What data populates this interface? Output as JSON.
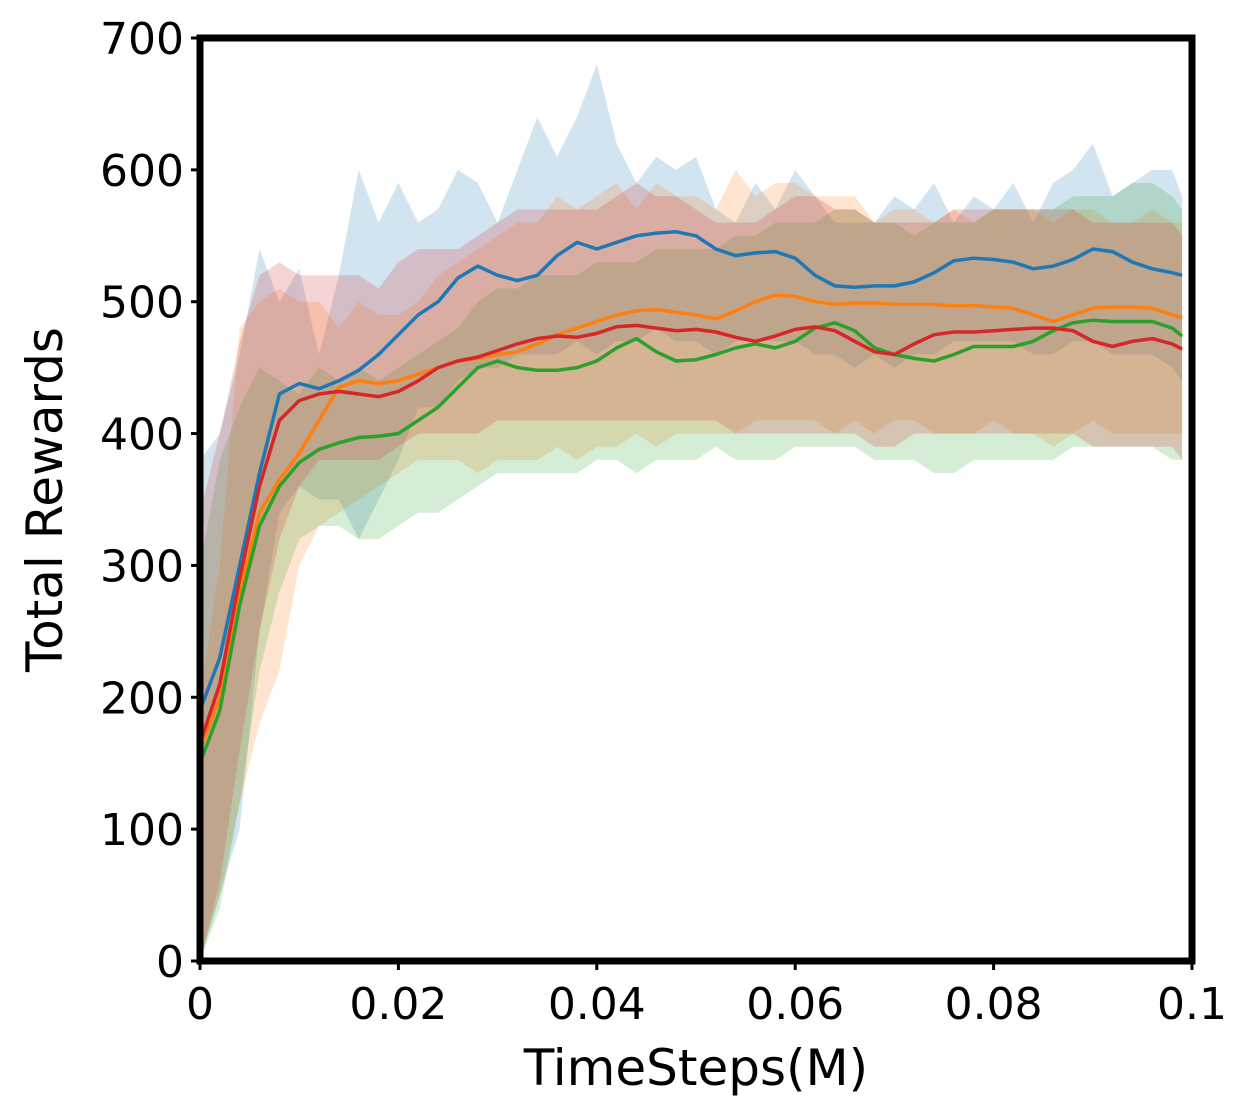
{
  "chart_data": {
    "type": "line",
    "title": "",
    "xlabel": "TimeSteps(M)",
    "ylabel": "Total Rewards",
    "xlim": [
      0,
      0.1
    ],
    "ylim": [
      0,
      700
    ],
    "xticks": [
      0,
      0.02,
      0.04,
      0.06,
      0.08,
      0.1
    ],
    "xtick_labels": [
      "0",
      "0.02",
      "0.04",
      "0.06",
      "0.08",
      "0.1"
    ],
    "yticks": [
      0,
      100,
      200,
      300,
      400,
      500,
      600,
      700
    ],
    "ytick_labels": [
      "0",
      "100",
      "200",
      "300",
      "400",
      "500",
      "600",
      "700"
    ],
    "grid": false,
    "legend": "none",
    "shaded_bands": true,
    "x": [
      0,
      0.002,
      0.004,
      0.006,
      0.008,
      0.01,
      0.012,
      0.014,
      0.016,
      0.018,
      0.02,
      0.022,
      0.024,
      0.026,
      0.028,
      0.03,
      0.032,
      0.034,
      0.036,
      0.038,
      0.04,
      0.042,
      0.044,
      0.046,
      0.048,
      0.05,
      0.052,
      0.054,
      0.056,
      0.058,
      0.06,
      0.062,
      0.064,
      0.066,
      0.068,
      0.07,
      0.072,
      0.074,
      0.076,
      0.078,
      0.08,
      0.082,
      0.084,
      0.086,
      0.088,
      0.09,
      0.092,
      0.094,
      0.096,
      0.098,
      0.099
    ],
    "series": [
      {
        "color": "#1f77b4",
        "values": [
          190,
          230,
          300,
          370,
          430,
          438,
          434,
          440,
          448,
          460,
          475,
          490,
          500,
          518,
          527,
          520,
          516,
          520,
          535,
          545,
          540,
          545,
          550,
          552,
          553,
          550,
          540,
          535,
          537,
          538,
          533,
          520,
          512,
          511,
          512,
          512,
          515,
          522,
          531,
          533,
          532,
          530,
          525,
          527,
          532,
          540,
          538,
          530,
          525,
          522,
          520
        ],
        "band_upper": [
          380,
          400,
          460,
          540,
          500,
          525,
          460,
          520,
          600,
          560,
          590,
          560,
          570,
          600,
          590,
          560,
          600,
          640,
          610,
          640,
          680,
          620,
          590,
          610,
          600,
          610,
          570,
          560,
          590,
          570,
          600,
          580,
          560,
          560,
          560,
          580,
          570,
          590,
          560,
          580,
          570,
          590,
          560,
          590,
          600,
          620,
          580,
          590,
          600,
          600,
          580
        ],
        "band_lower": [
          0,
          50,
          100,
          250,
          340,
          360,
          350,
          350,
          320,
          350,
          380,
          420,
          420,
          440,
          450,
          450,
          460,
          460,
          460,
          470,
          460,
          470,
          470,
          480,
          470,
          470,
          460,
          470,
          470,
          470,
          470,
          460,
          460,
          450,
          460,
          450,
          460,
          460,
          470,
          470,
          470,
          470,
          460,
          460,
          470,
          470,
          460,
          460,
          460,
          450,
          440
        ]
      },
      {
        "color": "#ff7f0e",
        "values": [
          160,
          200,
          280,
          340,
          365,
          385,
          410,
          435,
          440,
          438,
          440,
          445,
          450,
          455,
          457,
          460,
          462,
          468,
          475,
          480,
          485,
          490,
          493,
          494,
          492,
          490,
          487,
          493,
          500,
          505,
          504,
          500,
          498,
          499,
          499,
          498,
          498,
          498,
          497,
          497,
          496,
          495,
          490,
          485,
          490,
          495,
          496,
          496,
          495,
          490,
          488
        ],
        "band_upper": [
          200,
          300,
          480,
          500,
          510,
          500,
          500,
          480,
          500,
          490,
          490,
          500,
          520,
          530,
          540,
          550,
          560,
          560,
          580,
          570,
          580,
          590,
          570,
          590,
          580,
          580,
          570,
          600,
          580,
          590,
          590,
          580,
          580,
          580,
          560,
          570,
          570,
          560,
          570,
          560,
          570,
          570,
          570,
          560,
          570,
          570,
          560,
          560,
          570,
          560,
          560
        ],
        "band_lower": [
          0,
          50,
          120,
          180,
          220,
          300,
          330,
          340,
          350,
          360,
          370,
          380,
          380,
          380,
          370,
          380,
          380,
          380,
          390,
          380,
          390,
          390,
          400,
          390,
          400,
          400,
          400,
          400,
          410,
          410,
          410,
          410,
          400,
          410,
          400,
          410,
          410,
          400,
          400,
          400,
          410,
          400,
          400,
          390,
          400,
          410,
          400,
          400,
          400,
          400,
          400
        ]
      },
      {
        "color": "#2ca02c",
        "values": [
          150,
          190,
          270,
          330,
          360,
          378,
          388,
          393,
          397,
          398,
          400,
          410,
          420,
          435,
          450,
          455,
          450,
          448,
          448,
          450,
          455,
          465,
          472,
          462,
          455,
          456,
          460,
          465,
          468,
          465,
          470,
          480,
          484,
          478,
          465,
          460,
          457,
          455,
          460,
          466,
          466,
          466,
          470,
          478,
          484,
          486,
          485,
          485,
          485,
          480,
          474
        ],
        "band_upper": [
          300,
          380,
          420,
          450,
          440,
          430,
          450,
          440,
          450,
          440,
          450,
          460,
          470,
          480,
          500,
          510,
          510,
          520,
          520,
          520,
          530,
          530,
          530,
          540,
          540,
          540,
          540,
          550,
          550,
          560,
          560,
          560,
          570,
          570,
          560,
          560,
          550,
          560,
          560,
          560,
          570,
          570,
          570,
          570,
          580,
          580,
          580,
          590,
          590,
          580,
          570
        ],
        "band_lower": [
          0,
          40,
          120,
          220,
          280,
          320,
          330,
          330,
          320,
          320,
          330,
          340,
          340,
          350,
          360,
          370,
          370,
          370,
          370,
          370,
          380,
          380,
          370,
          380,
          380,
          380,
          390,
          380,
          380,
          380,
          390,
          390,
          390,
          390,
          380,
          380,
          380,
          370,
          370,
          380,
          380,
          380,
          380,
          380,
          390,
          390,
          390,
          390,
          390,
          380,
          380
        ]
      },
      {
        "color": "#d62728",
        "values": [
          165,
          210,
          290,
          360,
          410,
          425,
          430,
          432,
          430,
          428,
          432,
          440,
          450,
          455,
          458,
          463,
          468,
          472,
          474,
          473,
          476,
          481,
          482,
          480,
          478,
          479,
          477,
          473,
          470,
          474,
          479,
          481,
          478,
          470,
          462,
          460,
          468,
          475,
          477,
          477,
          478,
          479,
          480,
          480,
          478,
          470,
          466,
          470,
          472,
          468,
          464
        ],
        "band_upper": [
          340,
          400,
          470,
          520,
          530,
          520,
          520,
          520,
          520,
          510,
          530,
          540,
          540,
          540,
          550,
          560,
          570,
          570,
          570,
          570,
          570,
          580,
          590,
          580,
          580,
          570,
          560,
          560,
          560,
          570,
          580,
          580,
          570,
          570,
          560,
          560,
          560,
          560,
          570,
          570,
          570,
          570,
          570,
          570,
          570,
          560,
          560,
          560,
          560,
          560,
          550
        ],
        "band_lower": [
          0,
          60,
          160,
          250,
          320,
          360,
          380,
          380,
          380,
          380,
          390,
          400,
          400,
          400,
          400,
          410,
          410,
          410,
          410,
          410,
          410,
          410,
          410,
          410,
          410,
          410,
          410,
          400,
          400,
          400,
          400,
          400,
          400,
          400,
          390,
          390,
          400,
          400,
          400,
          400,
          400,
          400,
          400,
          400,
          400,
          390,
          390,
          390,
          390,
          390,
          380
        ]
      }
    ]
  }
}
